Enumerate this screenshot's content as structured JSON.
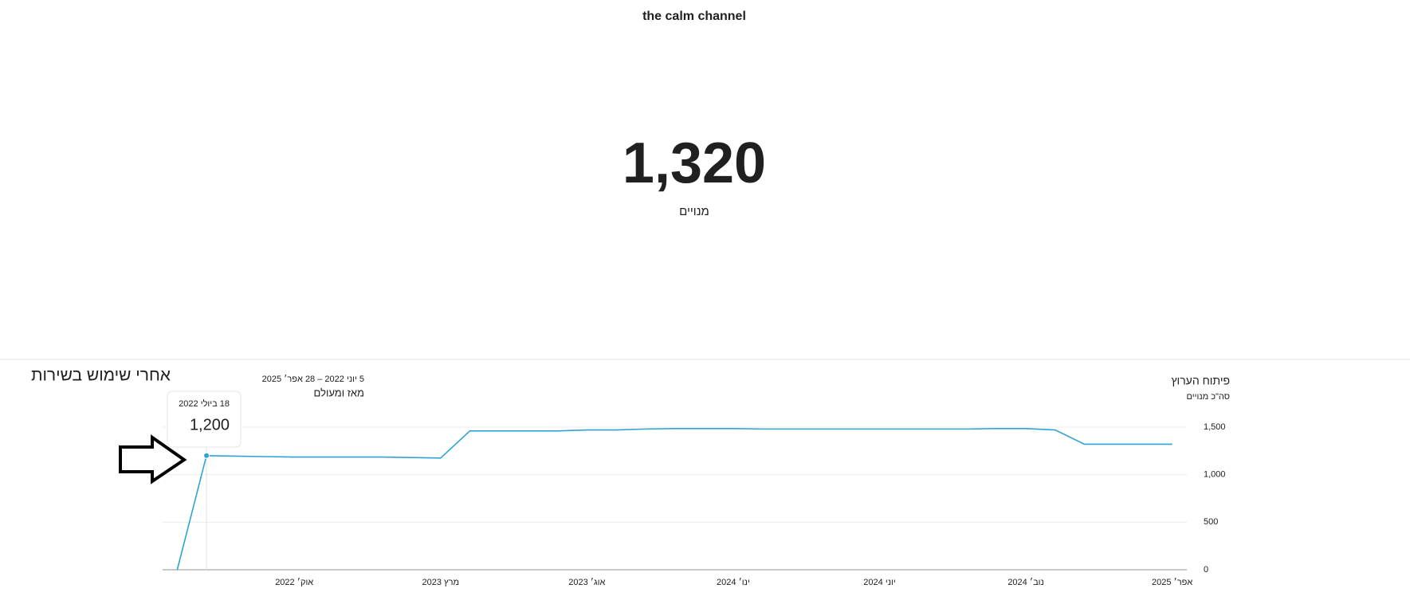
{
  "header": {
    "channel": "the calm channel",
    "subscribers": "1,320",
    "subscribers_label": "מנויים"
  },
  "annotation": "אחרי שימוש בשירות",
  "chart_data": {
    "type": "line",
    "title": "פיתוח הערוץ",
    "subtitle": "סה\"כ מנויים",
    "date_range": "5 יוני 2022 – 28 אפר׳ 2025",
    "period": "מאז ומעולם",
    "categories": [
      null,
      null,
      null,
      null,
      "אוק׳ 2022",
      null,
      null,
      null,
      null,
      "מרץ 2023",
      null,
      null,
      null,
      null,
      "אוג׳ 2023",
      null,
      null,
      null,
      null,
      "ינו׳ 2024",
      null,
      null,
      null,
      null,
      "יוני 2024",
      null,
      null,
      null,
      null,
      "נוב׳ 2024",
      null,
      null,
      null,
      null,
      "אפר׳ 2025"
    ],
    "series": [
      {
        "color": "#2ea3d6",
        "values": [
          0,
          1200,
          1195,
          1190,
          1185,
          1185,
          1185,
          1185,
          1180,
          1175,
          1460,
          1460,
          1460,
          1460,
          1470,
          1470,
          1480,
          1485,
          1485,
          1485,
          1480,
          1480,
          1480,
          1480,
          1480,
          1480,
          1480,
          1480,
          1485,
          1485,
          1470,
          1320,
          1320,
          1320,
          1320
        ]
      }
    ],
    "ylim": [
      0,
      1500
    ],
    "yticks": [
      0,
      500,
      {
        "value": 1000,
        "label": "1,000"
      },
      {
        "value": 1500,
        "label": "1,500"
      }
    ],
    "grid": true,
    "tooltip": {
      "index": 1,
      "date": "18 ביולי 2022",
      "value": {
        "value": 1200,
        "label": "1,200"
      }
    }
  }
}
